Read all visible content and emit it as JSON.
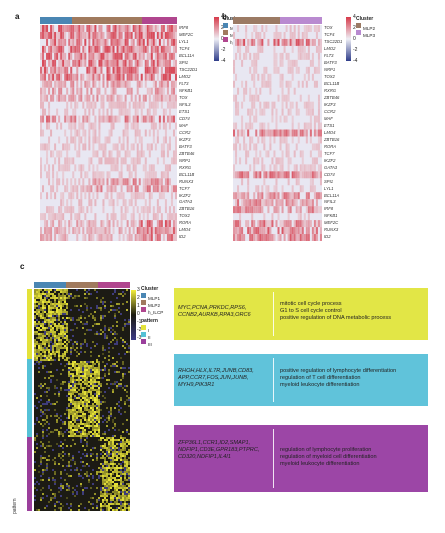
{
  "colors": {
    "mlp1": "#4a86b3",
    "mlp2": "#a07a5e",
    "h_ilcp": "#b0468e",
    "mlp2_b": "#9b7a64",
    "mlp3_b": "#b98ad0",
    "pattern_I": "#e3e23a",
    "pattern_II": "#55c1d6",
    "pattern_III": "#9b3f9c",
    "go_I": "#e2e646",
    "go_II": "#60c3da",
    "go_III": "#9c46a6",
    "heat_high": "#d63a4a",
    "heat_mid": "#e9e8f2",
    "heat_low": "#2f3d8a"
  },
  "panel_a": {
    "letter": "a",
    "genes": [
      "IRF8",
      "MEF2C",
      "LYL1",
      "TCF4",
      "BCL11A",
      "SPI1",
      "TSC22D1",
      "LMO2",
      "FLT3",
      "NFKB1",
      "TOX",
      "NFIL3",
      "ETS1",
      "CD74",
      "MAF",
      "CCR2",
      "IKZF3",
      "BATF3",
      "ZBTB46",
      "NRP1",
      "RXRG",
      "BCL11B",
      "RUNX3",
      "TCF7",
      "IKZF2",
      "GATA3",
      "ZBTB16",
      "TOX2",
      "RORA",
      "LMO4",
      "ID2"
    ],
    "legend": {
      "title": "Cluster",
      "items": [
        {
          "label": "MLP1",
          "color": "#4a86b3"
        },
        {
          "label": "MLP2",
          "color": "#a07a5e"
        },
        {
          "label": "h_ILCP",
          "color": "#b0468e"
        }
      ],
      "scale": [
        "4",
        "2",
        "0",
        "-2",
        "-4"
      ]
    }
  },
  "panel_b": {
    "letter": "b",
    "genes": [
      "TOX",
      "TCF4",
      "TSC22D1",
      "LMO2",
      "FLT3",
      "BATF3",
      "NRP1",
      "TOX2",
      "BCL11B",
      "RXRG",
      "ZBTB46",
      "IKZF3",
      "CCR2",
      "MAF",
      "ETS1",
      "LMO4",
      "ZBTB16",
      "RORA",
      "TCF7",
      "IKZF2",
      "GATA3",
      "CD74",
      "SPI1",
      "LYL1",
      "BCL11A",
      "NFIL3",
      "IRF8",
      "NFKB1",
      "MEF2C",
      "RUNX3",
      "ID2"
    ],
    "legend": {
      "title": "Cluster",
      "items": [
        {
          "label": "MLP2",
          "color": "#9b7a64"
        },
        {
          "label": "MLP3",
          "color": "#b98ad0"
        }
      ],
      "scale": [
        "4",
        "2",
        "0",
        "-2",
        "-4"
      ]
    }
  },
  "panel_c": {
    "letter": "c",
    "cluster_legend": {
      "title": "Cluster",
      "items": [
        {
          "label": "MLP1",
          "color": "#4a86b3"
        },
        {
          "label": "MLP2",
          "color": "#a07a5e"
        },
        {
          "label": "h_ILCP",
          "color": "#b0468e"
        }
      ]
    },
    "pattern_legend": {
      "title": "pattern",
      "items": [
        {
          "label": "I",
          "color": "#e3e23a"
        },
        {
          "label": "II",
          "color": "#55c1d6"
        },
        {
          "label": "III",
          "color": "#9b3f9c"
        }
      ]
    },
    "scale": [
      "3",
      "2",
      "1",
      "0",
      "-1",
      "-2",
      "-3"
    ],
    "row_annotation_label": "pattern",
    "go_boxes": [
      {
        "genes": [
          "MYC,PCNA,PRKDC,RPS6,",
          "CCNB2,AURKB,RPA3,ORC6"
        ],
        "terms": [
          "mitotic cell cycle process",
          "G1 to S cell cycle control",
          "positive regulation of DNA metabolic process"
        ]
      },
      {
        "genes": [
          "RHOH,HLX,IL7R,JUNB,CD83,",
          "APP,CCR7,FOS,JUN,JUNB,",
          "MYH9,PIK3R1"
        ],
        "terms": [
          "positive regulation of lymphocyte differentiation",
          "regulation of T cell differentiation",
          "myeloid leukocyte differentiation"
        ]
      },
      {
        "genes": [
          "ZFP36L1,CCR1,ID2,SMAP1,",
          "NDFIP1,CD3E,GPR183,PTPRC,",
          "CD320,NDFIP1,IL4I1"
        ],
        "terms": [
          "regulation of lymphocyte proliferation",
          "regulation of myeloid cell differentiation",
          "myeloid leukocyte differentiation"
        ]
      }
    ]
  }
}
